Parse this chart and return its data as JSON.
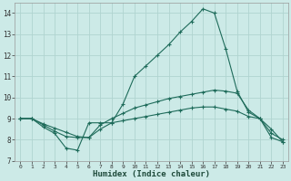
{
  "xlabel": "Humidex (Indice chaleur)",
  "xlim": [
    -0.5,
    23.5
  ],
  "ylim": [
    7,
    14.5
  ],
  "yticks": [
    7,
    8,
    9,
    10,
    11,
    12,
    13,
    14
  ],
  "xticks": [
    0,
    1,
    2,
    3,
    4,
    5,
    6,
    7,
    8,
    9,
    10,
    11,
    12,
    13,
    14,
    15,
    16,
    17,
    18,
    19,
    20,
    21,
    22,
    23
  ],
  "bg_color": "#cceae7",
  "grid_color": "#b0d4d0",
  "line_color": "#1e6b5a",
  "line1_y": [
    9.0,
    9.0,
    8.6,
    8.3,
    7.6,
    7.5,
    8.8,
    8.8,
    8.8,
    9.7,
    11.0,
    11.5,
    12.0,
    12.5,
    13.1,
    13.6,
    14.2,
    14.0,
    12.3,
    10.3,
    9.3,
    9.0,
    8.5,
    7.9
  ],
  "line2_y": [
    9.0,
    9.0,
    8.7,
    8.4,
    8.15,
    8.1,
    8.1,
    8.7,
    9.0,
    9.25,
    9.5,
    9.65,
    9.8,
    9.95,
    10.05,
    10.15,
    10.25,
    10.35,
    10.3,
    10.2,
    9.4,
    9.0,
    8.1,
    7.9
  ],
  "line3_y": [
    9.0,
    9.0,
    8.75,
    8.55,
    8.35,
    8.15,
    8.1,
    8.5,
    8.8,
    8.9,
    9.0,
    9.1,
    9.2,
    9.3,
    9.4,
    9.5,
    9.55,
    9.55,
    9.45,
    9.35,
    9.1,
    9.0,
    8.3,
    8.0
  ]
}
